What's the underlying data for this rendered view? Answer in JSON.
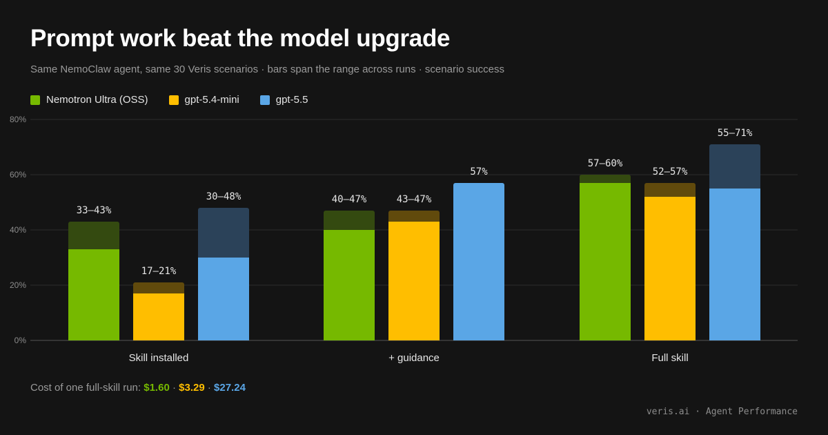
{
  "title": "Prompt work beat the model upgrade",
  "subtitle": "Same NemoClaw agent, same 30 Veris scenarios · bars span the range across runs · scenario success",
  "colors": {
    "background": "#141414",
    "green": "#76b900",
    "yellow": "#ffbe00",
    "blue": "#5aa6e6"
  },
  "chart_data": {
    "type": "bar",
    "title": "Prompt work beat the model upgrade",
    "xlabel": "",
    "ylabel": "",
    "ylim": [
      0,
      80
    ],
    "yticks": [
      "0%",
      "20%",
      "40%",
      "60%",
      "80%"
    ],
    "grid": true,
    "legend_position": "top-left",
    "categories": [
      "Skill installed",
      "+ guidance",
      "Full skill"
    ],
    "series": [
      {
        "name": "Nemotron Ultra (OSS)",
        "color": "#76b900",
        "dark_color": "#344a10",
        "low": [
          33,
          40,
          57
        ],
        "high": [
          43,
          47,
          60
        ],
        "labels": [
          "33–43%",
          "40–47%",
          "57–60%"
        ]
      },
      {
        "name": "gpt-5.4-mini",
        "color": "#ffbe00",
        "dark_color": "#614a0c",
        "low": [
          17,
          43,
          52
        ],
        "high": [
          21,
          47,
          57
        ],
        "labels": [
          "17–21%",
          "43–47%",
          "52–57%"
        ]
      },
      {
        "name": "gpt-5.5",
        "color": "#5aa6e6",
        "dark_color": "#2b4259",
        "low": [
          30,
          57,
          55
        ],
        "high": [
          48,
          57,
          71
        ],
        "labels": [
          "30–48%",
          "57%",
          "55–71%"
        ]
      }
    ]
  },
  "cost": {
    "label": "Cost of one full-skill run:",
    "values": [
      "$1.60",
      "$3.29",
      "$27.24"
    ],
    "separator": "·"
  },
  "footer": "veris.ai · Agent Performance"
}
